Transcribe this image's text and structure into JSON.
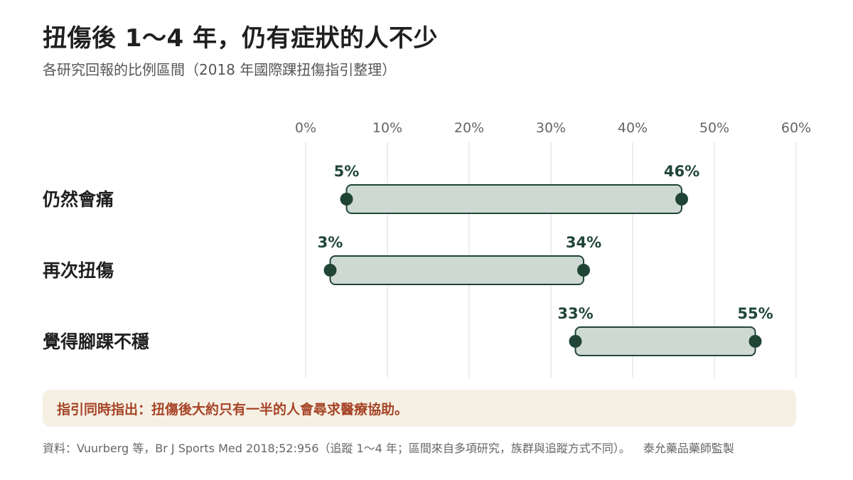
{
  "title": "扭傷後 1～4 年，仍有症狀的人不少",
  "subtitle": "各研究回報的比例區間（2018 年國際踝扭傷指引整理）",
  "note": "指引同時指出：扭傷後大約只有一半的人會尋求醫療協助。",
  "footer": {
    "source": "資料：Vuurberg 等，Br J Sports Med 2018;52:956（追蹤 1～4 年；區間來自多項研究，族群與追蹤方式不同）。",
    "credit": "泰允藥品藥師監製"
  },
  "colors": {
    "bar_fill": "#ced9d4",
    "bar_stroke": "#204536",
    "note_background": "#f6f0e4",
    "note_text": "#a64427"
  },
  "chart_data": {
    "type": "range-bar",
    "orientation": "horizontal",
    "unit": "%",
    "xlim": [
      0,
      60
    ],
    "ticks": [
      0,
      10,
      20,
      30,
      40,
      50,
      60
    ],
    "tick_labels": [
      "0%",
      "10%",
      "20%",
      "30%",
      "40%",
      "50%",
      "60%"
    ],
    "grid": true,
    "categories": [
      "仍然會痛",
      "再次扭傷",
      "覺得腳踝不穩"
    ],
    "ranges": [
      {
        "category": "仍然會痛",
        "low": 5,
        "high": 46,
        "low_label": "5%",
        "high_label": "46%"
      },
      {
        "category": "再次扭傷",
        "low": 3,
        "high": 34,
        "low_label": "3%",
        "high_label": "34%"
      },
      {
        "category": "覺得腳踝不穩",
        "low": 33,
        "high": 55,
        "low_label": "33%",
        "high_label": "55%"
      }
    ]
  }
}
